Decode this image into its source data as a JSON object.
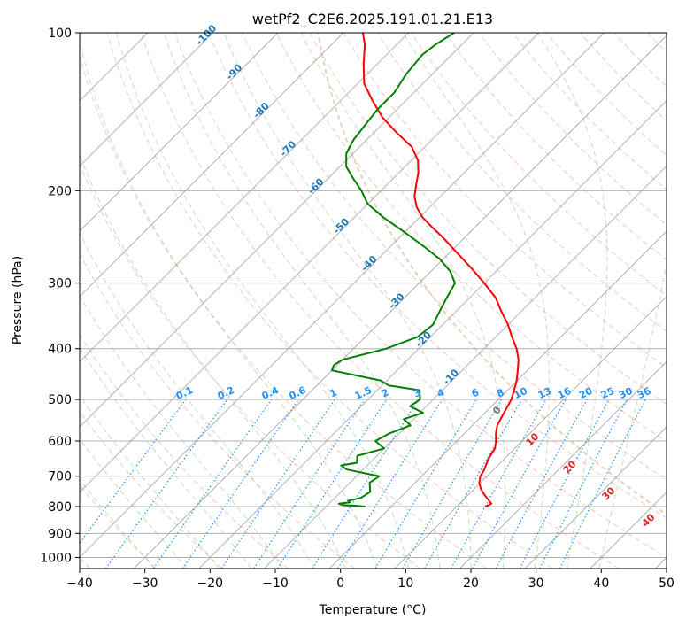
{
  "chart_data": {
    "type": "line",
    "subtype": "skew-T log-P diagram",
    "title": "wetPf2_C2E6.2025.191.01.21.E13",
    "xlabel": "Temperature (°C)",
    "ylabel": "Pressure (hPa)",
    "xlim": [
      -40,
      50
    ],
    "ylim": [
      1050,
      100
    ],
    "y_scale": "log",
    "x_ticks": [
      -40,
      -30,
      -20,
      -10,
      0,
      10,
      20,
      30,
      40,
      50
    ],
    "x_tick_labels": [
      "−40",
      "−30",
      "−20",
      "−10",
      "0",
      "10",
      "20",
      "30",
      "40",
      "50"
    ],
    "y_ticks": [
      100,
      200,
      300,
      400,
      500,
      600,
      700,
      800,
      900,
      1000
    ],
    "y_tick_labels": [
      "100",
      "200",
      "300",
      "400",
      "500",
      "600",
      "700",
      "800",
      "900",
      "1000"
    ],
    "grid": true,
    "colors": {
      "temperature": "#ff0000",
      "dewpoint": "#008000",
      "isotherm_labels": "#1f77b4",
      "mixing_ratio": "#1e90ff",
      "dry_adiabat": "#fa8072",
      "moist_adiabat": "#2ca02c",
      "theta_e_labels": "#d62728",
      "theta_e_zero": "#808080"
    },
    "series": [
      {
        "role": "temperature",
        "p": [
          800,
          790,
          780,
          760,
          740,
          720,
          700,
          680,
          650,
          620,
          600,
          580,
          560,
          540,
          520,
          500,
          480,
          460,
          440,
          420,
          400,
          380,
          360,
          340,
          320,
          300,
          280,
          260,
          245,
          235,
          225,
          215,
          205,
          195,
          185,
          175,
          165,
          155,
          145,
          135,
          125,
          115,
          105,
          100
        ],
        "t": [
          14.4,
          14.9,
          14.1,
          12.5,
          11.0,
          9.8,
          9.0,
          8.6,
          7.6,
          7.0,
          6.0,
          4.8,
          3.8,
          3.2,
          2.6,
          2.0,
          1.0,
          -0.1,
          -1.5,
          -3.0,
          -5.0,
          -7.5,
          -10.0,
          -13.0,
          -16.0,
          -20.0,
          -24.5,
          -29.5,
          -33.5,
          -36.5,
          -39.5,
          -42.0,
          -44.0,
          -45.5,
          -47.0,
          -49.0,
          -52.0,
          -56.5,
          -61.0,
          -65.0,
          -69.0,
          -72.0,
          -75.0,
          -77.0
        ]
      },
      {
        "role": "dewpoint",
        "p": [
          800,
          797,
          795,
          790,
          785,
          780,
          770,
          750,
          720,
          700,
          680,
          668,
          660,
          640,
          620,
          600,
          580,
          560,
          545,
          530,
          515,
          500,
          480,
          470,
          460,
          440,
          430,
          420,
          410,
          400,
          380,
          360,
          340,
          320,
          300,
          285,
          270,
          255,
          240,
          225,
          212,
          200,
          190,
          180,
          170,
          160,
          150,
          140,
          130,
          120,
          110,
          105,
          100
        ],
        "td": [
          -4.0,
          -5.5,
          -7.5,
          -8.5,
          -7.0,
          -7.5,
          -6.0,
          -5.5,
          -7.0,
          -6.5,
          -12.5,
          -14.0,
          -12.0,
          -13.0,
          -10.0,
          -12.5,
          -11.5,
          -9.5,
          -11.5,
          -9.5,
          -12.5,
          -12.0,
          -13.5,
          -19.0,
          -21.0,
          -30.0,
          -30.5,
          -30.0,
          -27.5,
          -25.0,
          -22.0,
          -21.5,
          -22.5,
          -23.5,
          -24.5,
          -27.0,
          -30.5,
          -35.0,
          -40.0,
          -45.5,
          -50.0,
          -53.0,
          -56.0,
          -59.0,
          -61.0,
          -62.0,
          -62.5,
          -63.0,
          -63.0,
          -64.0,
          -64.5,
          -64.0,
          -63.0
        ]
      }
    ],
    "isotherm_labels": [
      "-100",
      "-90",
      "-80",
      "-70",
      "-60",
      "-50",
      "-40",
      "-30",
      "-20",
      "-10"
    ],
    "mixing_ratio_labels": [
      "0.1",
      "0.2",
      "0.4",
      "0.6",
      "1",
      "1.5",
      "2",
      "3",
      "4",
      "6",
      "8",
      "10",
      "13",
      "16",
      "20",
      "25",
      "30",
      "36"
    ],
    "theta_e_labels": [
      "0",
      "10",
      "20",
      "30",
      "40"
    ]
  }
}
